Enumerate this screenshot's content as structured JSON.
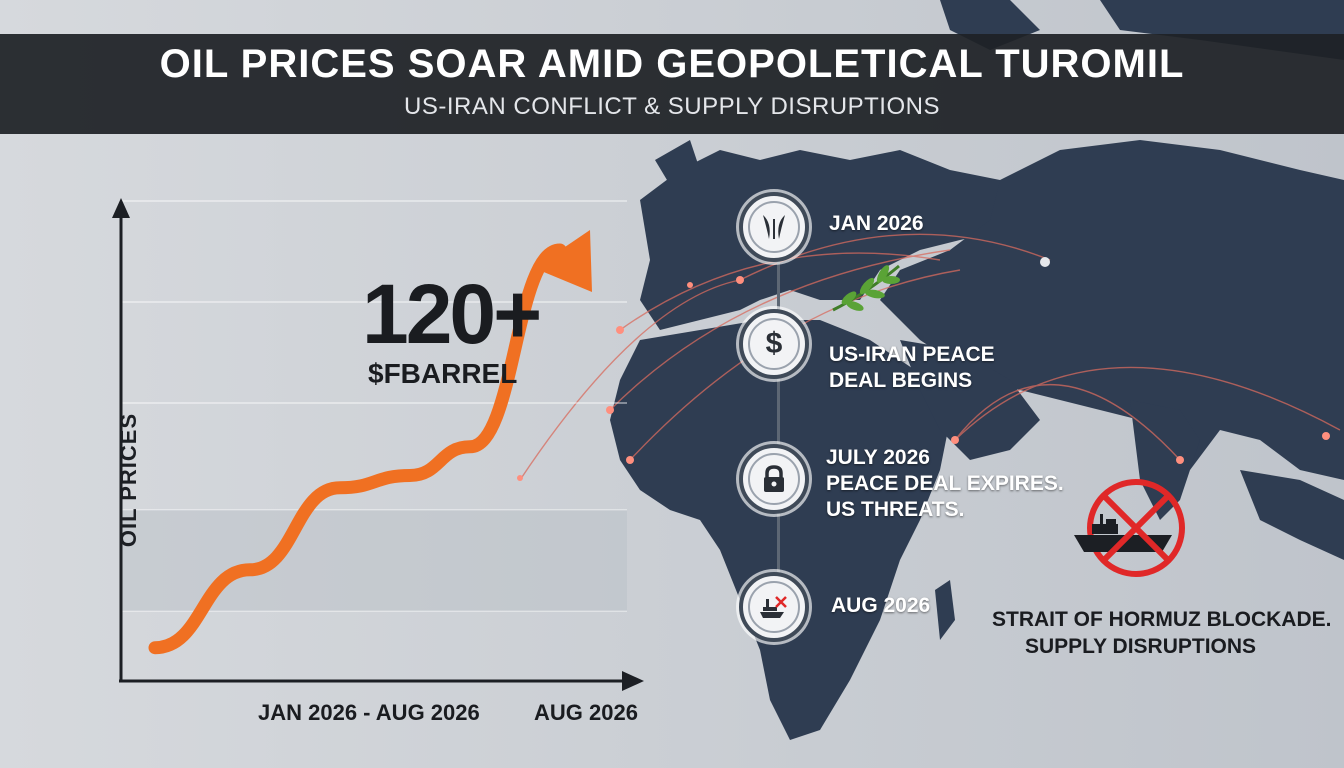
{
  "header": {
    "title": "OIL PRICES SOAR AMID GEOPOLETICAL TUROMIL",
    "subtitle": "US-IRAN CONFLICT & SUPPLY DISRUPTIONS"
  },
  "chart_data": {
    "type": "line",
    "title": "",
    "ylabel": "OIL PRICES",
    "xlabel": "JAN 2026 - AUG 2026",
    "x_end_label": "AUG 2026",
    "series": [
      {
        "values": [
          0.03,
          0.22,
          0.42,
          0.45,
          0.52,
          1.0
        ]
      }
    ],
    "callout": {
      "value": "120+",
      "unit": "$FBARREL"
    },
    "grid": true,
    "colors": {
      "line": "#f07022"
    }
  },
  "timeline": [
    {
      "date": "JAN 2026",
      "text": [],
      "icon": "olive-branch-icon"
    },
    {
      "date": "",
      "text": [
        "US-IRAN PEACE",
        "DEAL BEGINS"
      ],
      "icon": "dollar-icon"
    },
    {
      "date": "JULY 2026",
      "text": [
        "PEACE DEAL EXPIRES.",
        "US THREATS."
      ],
      "icon": "lock-icon"
    },
    {
      "date": "AUG 2026",
      "text": [],
      "icon": "blocked-ship-icon"
    }
  ],
  "hormuz": {
    "line1": "STRAIT OF HORMUZ BLOCKADE.",
    "line2": "SUPPLY DISRUPTIONS",
    "icon": "no-ships-icon"
  },
  "colors": {
    "banner": "#1e2126",
    "accent": "#f07022",
    "map": "#2f3d52",
    "background": "#c9cdd3",
    "prohibit": "#e02828"
  }
}
